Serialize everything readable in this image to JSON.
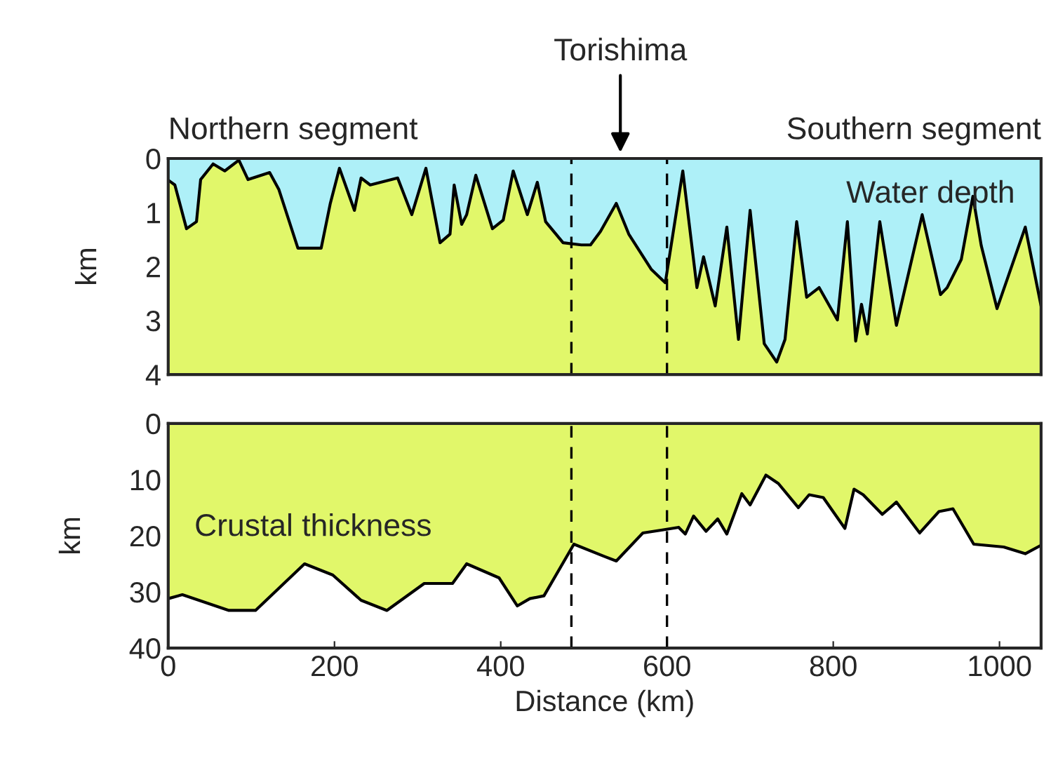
{
  "chart_data": [
    {
      "type": "area",
      "ylabel": "km",
      "xlim": [
        0,
        1050
      ],
      "ylim": [
        4,
        0
      ],
      "yticks": [
        0,
        1,
        2,
        3,
        4
      ],
      "tick_labels": "y",
      "annotations": [
        "Northern segment",
        "Southern segment",
        "Torishima"
      ],
      "bands": [
        {
          "axis": "y",
          "from": 0,
          "to": 4,
          "color": "#e1f76a"
        }
      ],
      "ref_lines": [
        {
          "axis": "x",
          "value": 485,
          "line_style": "dashed"
        },
        {
          "axis": "x",
          "value": 600,
          "line_style": "dashed"
        }
      ],
      "series": [
        {
          "name": "Water depth",
          "color": "#aef0f8",
          "x": [
            0,
            8,
            22,
            34,
            39,
            54,
            68,
            85,
            96,
            122,
            133,
            156,
            184,
            195,
            206,
            224,
            232,
            243,
            276,
            293,
            310,
            327,
            339,
            344,
            353,
            359,
            370,
            390,
            403,
            415,
            432,
            444,
            454,
            475,
            497,
            508,
            520,
            539,
            554,
            581,
            598,
            619,
            636,
            644,
            658,
            672,
            686,
            700,
            717,
            732,
            742,
            756,
            768,
            783,
            805,
            817,
            827,
            834,
            841,
            856,
            876,
            907,
            929,
            937,
            954,
            968,
            978,
            997,
            1031,
            1050
          ],
          "values": [
            0.4,
            0.49,
            1.3,
            1.17,
            0.39,
            0.1,
            0.23,
            0.03,
            0.39,
            0.26,
            0.57,
            1.66,
            1.66,
            0.83,
            0.18,
            0.96,
            0.36,
            0.49,
            0.36,
            1.04,
            0.18,
            1.56,
            1.4,
            0.49,
            1.22,
            1.04,
            0.31,
            1.3,
            1.14,
            0.23,
            1.04,
            0.44,
            1.17,
            1.56,
            1.6,
            1.6,
            1.35,
            0.83,
            1.4,
            2.05,
            2.3,
            0.23,
            2.39,
            1.82,
            2.73,
            1.27,
            3.35,
            0.96,
            3.43,
            3.77,
            3.35,
            1.17,
            2.57,
            2.39,
            2.99,
            1.17,
            3.38,
            2.7,
            3.25,
            1.17,
            3.09,
            1.04,
            2.52,
            2.39,
            1.87,
            0.7,
            1.61,
            2.78,
            1.27,
            2.73
          ]
        }
      ]
    },
    {
      "type": "area",
      "ylabel": "km",
      "xlabel": "Distance (km)",
      "xlim": [
        0,
        1050
      ],
      "xticks": [
        0,
        200,
        400,
        600,
        800,
        1000
      ],
      "ylim": [
        40,
        0
      ],
      "yticks": [
        0,
        10,
        20,
        30,
        40
      ],
      "ref_lines": [
        {
          "axis": "x",
          "value": 485,
          "line_style": "dashed"
        },
        {
          "axis": "x",
          "value": 600,
          "line_style": "dashed"
        }
      ],
      "series": [
        {
          "name": "Crustal thickness",
          "color": "#e1f76a",
          "x": [
            0,
            17,
            73,
            105,
            164,
            198,
            232,
            263,
            308,
            342,
            359,
            398,
            420,
            435,
            452,
            488,
            525,
            539,
            571,
            593,
            614,
            622,
            632,
            647,
            661,
            672,
            690,
            700,
            719,
            734,
            758,
            771,
            788,
            814,
            825,
            836,
            859,
            876,
            904,
            927,
            944,
            969,
            1005,
            1031,
            1050
          ],
          "values": [
            31.2,
            30.5,
            33.3,
            33.3,
            25,
            27,
            31.5,
            33.3,
            28.5,
            28.5,
            25,
            27.5,
            32.5,
            31.2,
            30.7,
            21.5,
            23.7,
            24.5,
            19.5,
            19,
            18.5,
            19.7,
            16.5,
            19.2,
            17,
            19.7,
            12.5,
            14.5,
            9.2,
            10.7,
            15,
            12.7,
            13.2,
            18.7,
            11.7,
            12.7,
            16.2,
            14,
            19.5,
            15.7,
            15.2,
            21.5,
            22,
            23.2,
            21.7
          ]
        }
      ]
    }
  ]
}
